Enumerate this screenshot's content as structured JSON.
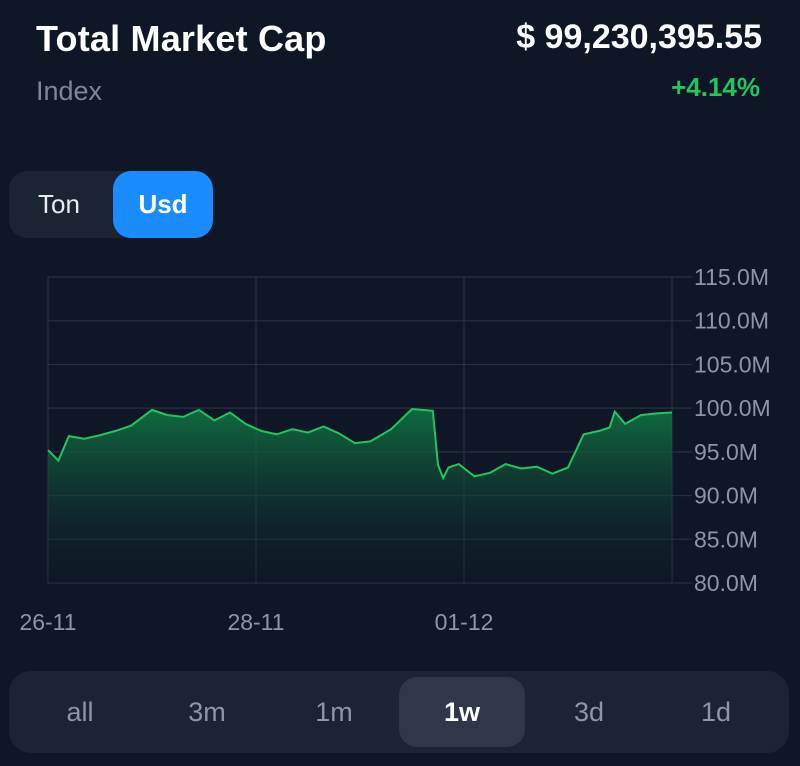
{
  "header": {
    "title": "Total Market Cap",
    "subtitle": "Index",
    "price": "$ 99,230,395.55",
    "change": "+4.14%",
    "change_color": "#22c55e"
  },
  "currency_toggle": {
    "options": [
      "Ton",
      "Usd"
    ],
    "selected": "Usd",
    "accent": "#1a8cff"
  },
  "range_selector": {
    "options": [
      "all",
      "3m",
      "1m",
      "1w",
      "3d",
      "1d"
    ],
    "selected": "1w"
  },
  "chart_data": {
    "type": "area",
    "x": [
      0,
      0.1,
      0.2,
      0.35,
      0.5,
      0.65,
      0.8,
      1.0,
      1.15,
      1.3,
      1.45,
      1.6,
      1.75,
      1.9,
      2.05,
      2.2,
      2.35,
      2.5,
      2.65,
      2.8,
      2.95,
      3.1,
      3.3,
      3.5,
      3.7,
      3.75,
      3.8,
      3.85,
      3.95,
      4.1,
      4.25,
      4.4,
      4.55,
      4.7,
      4.85,
      5.0,
      5.15,
      5.3,
      5.4,
      5.45,
      5.55,
      5.7,
      5.85,
      6.0
    ],
    "values": [
      95.2,
      94.0,
      96.8,
      96.5,
      96.9,
      97.4,
      98.0,
      99.8,
      99.2,
      99.0,
      99.8,
      98.6,
      99.5,
      98.2,
      97.4,
      97.0,
      97.6,
      97.2,
      97.9,
      97.1,
      96.0,
      96.2,
      97.6,
      99.9,
      99.7,
      93.5,
      92.0,
      93.2,
      93.6,
      92.2,
      92.6,
      93.6,
      93.1,
      93.3,
      92.5,
      93.2,
      97.0,
      97.4,
      97.8,
      99.6,
      98.2,
      99.2,
      99.4,
      99.5
    ],
    "ylim": [
      80,
      115
    ],
    "ytick_labels": [
      "115.0M",
      "110.0M",
      "105.0M",
      "100.0M",
      "95.0M",
      "90.0M",
      "85.0M",
      "80.0M"
    ],
    "xtick_labels": [
      "26-11",
      "28-11",
      "01-12"
    ],
    "xtick_positions": [
      0,
      2,
      4
    ],
    "line_color": "#22c55e",
    "grid": true
  }
}
